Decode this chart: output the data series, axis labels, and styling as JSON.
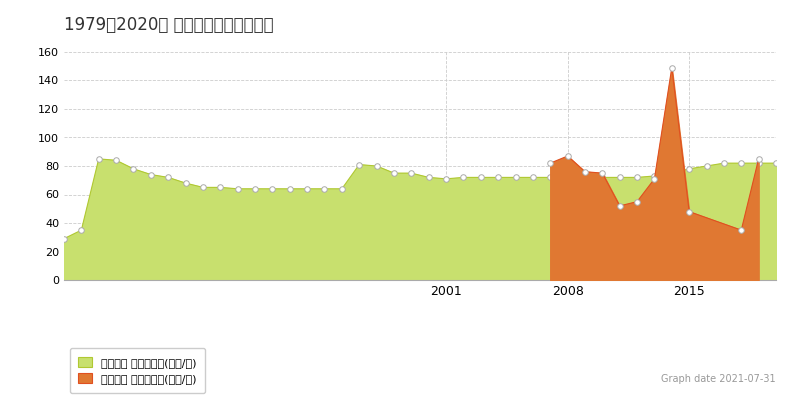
{
  "title": "1979～2020年 足立区平野の地価推移",
  "ylim": [
    0,
    160
  ],
  "yticks": [
    0,
    20,
    40,
    60,
    80,
    100,
    120,
    140,
    160
  ],
  "background_color": "#ffffff",
  "plot_bg_color": "#ffffff",
  "grid_color": "#cccccc",
  "chikazuji_color": "#c8e06e",
  "chikazuji_line_color": "#b0c832",
  "torihiki_color": "#e07832",
  "torihiki_line_color": "#e05020",
  "marker_color": "#ffffff",
  "marker_edge_color": "#aaaaaa",
  "legend1": "地価公示 平均坪単価(万円/坪)",
  "legend2": "取引価格 平均坪単価(万円/坪)",
  "graph_date": "Graph date 2021-07-31",
  "chikazuji_years": [
    1979,
    1980,
    1981,
    1982,
    1983,
    1984,
    1985,
    1986,
    1987,
    1988,
    1989,
    1990,
    1991,
    1992,
    1993,
    1994,
    1995,
    1996,
    1997,
    1998,
    1999,
    2000,
    2001,
    2002,
    2003,
    2004,
    2005,
    2006,
    2007,
    2008,
    2009,
    2010,
    2011,
    2012,
    2013,
    2014,
    2015,
    2016,
    2017,
    2018,
    2019,
    2020
  ],
  "chikazuji_values": [
    29,
    35,
    85,
    84,
    78,
    74,
    72,
    68,
    65,
    65,
    64,
    64,
    64,
    64,
    64,
    64,
    64,
    81,
    80,
    75,
    75,
    72,
    71,
    72,
    72,
    72,
    72,
    72,
    72,
    72,
    72,
    72,
    72,
    72,
    73,
    75,
    78,
    80,
    82,
    82,
    82,
    82
  ],
  "torihiki_years": [
    2007,
    2008,
    2009,
    2010,
    2011,
    2012,
    2013,
    2014,
    2015,
    2018,
    2019
  ],
  "torihiki_values": [
    82,
    87,
    76,
    75,
    52,
    55,
    71,
    149,
    48,
    35,
    85
  ],
  "xtick_years": [
    2001,
    2008,
    2015
  ],
  "xmin": 1979,
  "xmax": 2020
}
